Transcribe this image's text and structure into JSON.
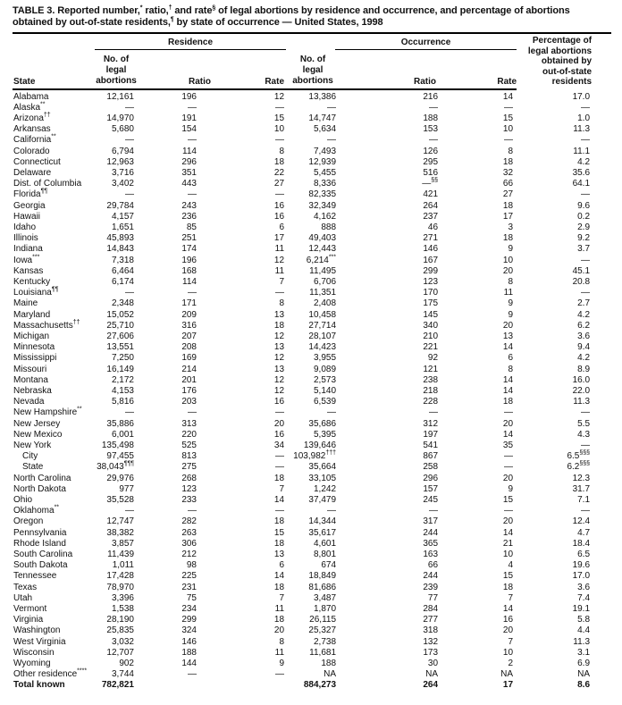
{
  "title": "TABLE 3. Reported number,^{*} ratio,^{†} and rate^{§} of legal abortions by residence and occurrence, and percentage of abortions obtained by out-of-state residents,^{¶} by state of occurrence — United States, 1998",
  "table": {
    "groups": {
      "residence": "Residence",
      "occurrence": "Occurrence"
    },
    "headers": {
      "state": "State",
      "no_of_legal_abortions": "No. of\nlegal abortions",
      "ratio": "Ratio",
      "rate": "Rate",
      "pct_out_of_state": "Percentage of\nlegal abortions\nobtained by\nout-of-state\nresidents"
    },
    "rows": [
      {
        "state": "Alabama",
        "indent": false,
        "bold": false,
        "cells": [
          "12,161",
          "196",
          "12",
          "13,386",
          "216",
          "14",
          "17.0"
        ]
      },
      {
        "state": "Alaska^{**}",
        "indent": false,
        "bold": false,
        "cells": [
          "—",
          "—",
          "—",
          "—",
          "—",
          "—",
          "—"
        ]
      },
      {
        "state": "Arizona^{††}",
        "indent": false,
        "bold": false,
        "cells": [
          "14,970",
          "191",
          "15",
          "14,747",
          "188",
          "15",
          "1.0"
        ]
      },
      {
        "state": "Arkansas",
        "indent": false,
        "bold": false,
        "cells": [
          "5,680",
          "154",
          "10",
          "5,634",
          "153",
          "10",
          "11.3"
        ]
      },
      {
        "state": "California^{**}",
        "indent": false,
        "bold": false,
        "cells": [
          "—",
          "—",
          "—",
          "—",
          "—",
          "—",
          "—"
        ]
      },
      {
        "state": "Colorado",
        "indent": false,
        "bold": false,
        "cells": [
          "6,794",
          "114",
          "8",
          "7,493",
          "126",
          "8",
          "11.1"
        ]
      },
      {
        "state": "Connecticut",
        "indent": false,
        "bold": false,
        "cells": [
          "12,963",
          "296",
          "18",
          "12,939",
          "295",
          "18",
          "4.2"
        ]
      },
      {
        "state": "Delaware",
        "indent": false,
        "bold": false,
        "cells": [
          "3,716",
          "351",
          "22",
          "5,455",
          "516",
          "32",
          "35.6"
        ]
      },
      {
        "state": "Dist. of Columbia",
        "indent": false,
        "bold": false,
        "cells": [
          "3,402",
          "443",
          "27",
          "8,336",
          "—^{§§}",
          "66",
          "64.1"
        ]
      },
      {
        "state": "Florida^{¶¶}",
        "indent": false,
        "bold": false,
        "cells": [
          "—",
          "—",
          "—",
          "82,335",
          "421",
          "27",
          "—"
        ]
      },
      {
        "state": "Georgia",
        "indent": false,
        "bold": false,
        "cells": [
          "29,784",
          "243",
          "16",
          "32,349",
          "264",
          "18",
          "9.6"
        ]
      },
      {
        "state": "Hawaii",
        "indent": false,
        "bold": false,
        "cells": [
          "4,157",
          "236",
          "16",
          "4,162",
          "237",
          "17",
          "0.2"
        ]
      },
      {
        "state": "Idaho",
        "indent": false,
        "bold": false,
        "cells": [
          "1,651",
          "85",
          "6",
          "888",
          "46",
          "3",
          "2.9"
        ]
      },
      {
        "state": "Illinois",
        "indent": false,
        "bold": false,
        "cells": [
          "45,893",
          "251",
          "17",
          "49,403",
          "271",
          "18",
          "9.2"
        ]
      },
      {
        "state": "Indiana",
        "indent": false,
        "bold": false,
        "cells": [
          "14,843",
          "174",
          "11",
          "12,443",
          "146",
          "9",
          "3.7"
        ]
      },
      {
        "state": "Iowa^{***}",
        "indent": false,
        "bold": false,
        "cells": [
          "7,318",
          "196",
          "12",
          "6,214^{***}",
          "167",
          "10",
          "—"
        ]
      },
      {
        "state": "Kansas",
        "indent": false,
        "bold": false,
        "cells": [
          "6,464",
          "168",
          "11",
          "11,495",
          "299",
          "20",
          "45.1"
        ]
      },
      {
        "state": "Kentucky",
        "indent": false,
        "bold": false,
        "cells": [
          "6,174",
          "114",
          "7",
          "6,706",
          "123",
          "8",
          "20.8"
        ]
      },
      {
        "state": "Louisiana^{¶¶}",
        "indent": false,
        "bold": false,
        "cells": [
          "—",
          "—",
          "—",
          "11,351",
          "170",
          "11",
          "—"
        ]
      },
      {
        "state": "Maine",
        "indent": false,
        "bold": false,
        "cells": [
          "2,348",
          "171",
          "8",
          "2,408",
          "175",
          "9",
          "2.7"
        ]
      },
      {
        "state": "Maryland",
        "indent": false,
        "bold": false,
        "cells": [
          "15,052",
          "209",
          "13",
          "10,458",
          "145",
          "9",
          "4.2"
        ]
      },
      {
        "state": "Massachusetts^{††}",
        "indent": false,
        "bold": false,
        "cells": [
          "25,710",
          "316",
          "18",
          "27,714",
          "340",
          "20",
          "6.2"
        ]
      },
      {
        "state": "Michigan",
        "indent": false,
        "bold": false,
        "cells": [
          "27,606",
          "207",
          "12",
          "28,107",
          "210",
          "13",
          "3.6"
        ]
      },
      {
        "state": "Minnesota",
        "indent": false,
        "bold": false,
        "cells": [
          "13,551",
          "208",
          "13",
          "14,423",
          "221",
          "14",
          "9.4"
        ]
      },
      {
        "state": "Mississippi",
        "indent": false,
        "bold": false,
        "cells": [
          "7,250",
          "169",
          "12",
          "3,955",
          "92",
          "6",
          "4.2"
        ]
      },
      {
        "state": "Missouri",
        "indent": false,
        "bold": false,
        "cells": [
          "16,149",
          "214",
          "13",
          "9,089",
          "121",
          "8",
          "8.9"
        ]
      },
      {
        "state": "Montana",
        "indent": false,
        "bold": false,
        "cells": [
          "2,172",
          "201",
          "12",
          "2,573",
          "238",
          "14",
          "16.0"
        ]
      },
      {
        "state": "Nebraska",
        "indent": false,
        "bold": false,
        "cells": [
          "4,153",
          "176",
          "12",
          "5,140",
          "218",
          "14",
          "22.0"
        ]
      },
      {
        "state": "Nevada",
        "indent": false,
        "bold": false,
        "cells": [
          "5,816",
          "203",
          "16",
          "6,539",
          "228",
          "18",
          "11.3"
        ]
      },
      {
        "state": "New Hampshire^{**}",
        "indent": false,
        "bold": false,
        "cells": [
          "—",
          "—",
          "—",
          "—",
          "—",
          "—",
          "—"
        ]
      },
      {
        "state": "New Jersey",
        "indent": false,
        "bold": false,
        "cells": [
          "35,886",
          "313",
          "20",
          "35,686",
          "312",
          "20",
          "5.5"
        ]
      },
      {
        "state": "New Mexico",
        "indent": false,
        "bold": false,
        "cells": [
          "6,001",
          "220",
          "16",
          "5,395",
          "197",
          "14",
          "4.3"
        ]
      },
      {
        "state": "New York",
        "indent": false,
        "bold": false,
        "cells": [
          "135,498",
          "525",
          "34",
          "139,646",
          "541",
          "35",
          "—"
        ]
      },
      {
        "state": "City",
        "indent": true,
        "bold": false,
        "cells": [
          "97,455",
          "813",
          "—",
          "103,982^{†††}",
          "867",
          "—",
          "6.5^{§§§}"
        ]
      },
      {
        "state": "State",
        "indent": true,
        "bold": false,
        "cells": [
          "38,043^{¶¶¶}",
          "275",
          "—",
          "35,664",
          "258",
          "—",
          "6.2^{§§§}"
        ]
      },
      {
        "state": "North Carolina",
        "indent": false,
        "bold": false,
        "cells": [
          "29,976",
          "268",
          "18",
          "33,105",
          "296",
          "20",
          "12.3"
        ]
      },
      {
        "state": "North Dakota",
        "indent": false,
        "bold": false,
        "cells": [
          "977",
          "123",
          "7",
          "1,242",
          "157",
          "9",
          "31.7"
        ]
      },
      {
        "state": "Ohio",
        "indent": false,
        "bold": false,
        "cells": [
          "35,528",
          "233",
          "14",
          "37,479",
          "245",
          "15",
          "7.1"
        ]
      },
      {
        "state": "Oklahoma^{**}",
        "indent": false,
        "bold": false,
        "cells": [
          "—",
          "—",
          "—",
          "—",
          "—",
          "—",
          "—"
        ]
      },
      {
        "state": "Oregon",
        "indent": false,
        "bold": false,
        "cells": [
          "12,747",
          "282",
          "18",
          "14,344",
          "317",
          "20",
          "12.4"
        ]
      },
      {
        "state": "Pennsylvania",
        "indent": false,
        "bold": false,
        "cells": [
          "38,382",
          "263",
          "15",
          "35,617",
          "244",
          "14",
          "4.7"
        ]
      },
      {
        "state": "Rhode Island",
        "indent": false,
        "bold": false,
        "cells": [
          "3,857",
          "306",
          "18",
          "4,601",
          "365",
          "21",
          "18.4"
        ]
      },
      {
        "state": "South Carolina",
        "indent": false,
        "bold": false,
        "cells": [
          "11,439",
          "212",
          "13",
          "8,801",
          "163",
          "10",
          "6.5"
        ]
      },
      {
        "state": "South Dakota",
        "indent": false,
        "bold": false,
        "cells": [
          "1,011",
          "98",
          "6",
          "674",
          "66",
          "4",
          "19.6"
        ]
      },
      {
        "state": "Tennessee",
        "indent": false,
        "bold": false,
        "cells": [
          "17,428",
          "225",
          "14",
          "18,849",
          "244",
          "15",
          "17.0"
        ]
      },
      {
        "state": "Texas",
        "indent": false,
        "bold": false,
        "cells": [
          "78,970",
          "231",
          "18",
          "81,686",
          "239",
          "18",
          "3.6"
        ]
      },
      {
        "state": "Utah",
        "indent": false,
        "bold": false,
        "cells": [
          "3,396",
          "75",
          "7",
          "3,487",
          "77",
          "7",
          "7.4"
        ]
      },
      {
        "state": "Vermont",
        "indent": false,
        "bold": false,
        "cells": [
          "1,538",
          "234",
          "11",
          "1,870",
          "284",
          "14",
          "19.1"
        ]
      },
      {
        "state": "Virginia",
        "indent": false,
        "bold": false,
        "cells": [
          "28,190",
          "299",
          "18",
          "26,115",
          "277",
          "16",
          "5.8"
        ]
      },
      {
        "state": "Washington",
        "indent": false,
        "bold": false,
        "cells": [
          "25,835",
          "324",
          "20",
          "25,327",
          "318",
          "20",
          "4.4"
        ]
      },
      {
        "state": "West Virginia",
        "indent": false,
        "bold": false,
        "cells": [
          "3,032",
          "146",
          "8",
          "2,738",
          "132",
          "7",
          "11.3"
        ]
      },
      {
        "state": "Wisconsin",
        "indent": false,
        "bold": false,
        "cells": [
          "12,707",
          "188",
          "11",
          "11,681",
          "173",
          "10",
          "3.1"
        ]
      },
      {
        "state": "Wyoming",
        "indent": false,
        "bold": false,
        "cells": [
          "902",
          "144",
          "9",
          "188",
          "30",
          "2",
          "6.9"
        ]
      },
      {
        "state": "Other residence^{****}",
        "indent": false,
        "bold": false,
        "cells": [
          "3,744",
          "—",
          "—",
          "NA",
          "NA",
          "NA",
          "NA"
        ]
      },
      {
        "state": "Total known",
        "indent": false,
        "bold": true,
        "cells": [
          "782,821",
          "",
          "",
          "884,273",
          "264",
          "17",
          "8.6"
        ]
      }
    ]
  }
}
